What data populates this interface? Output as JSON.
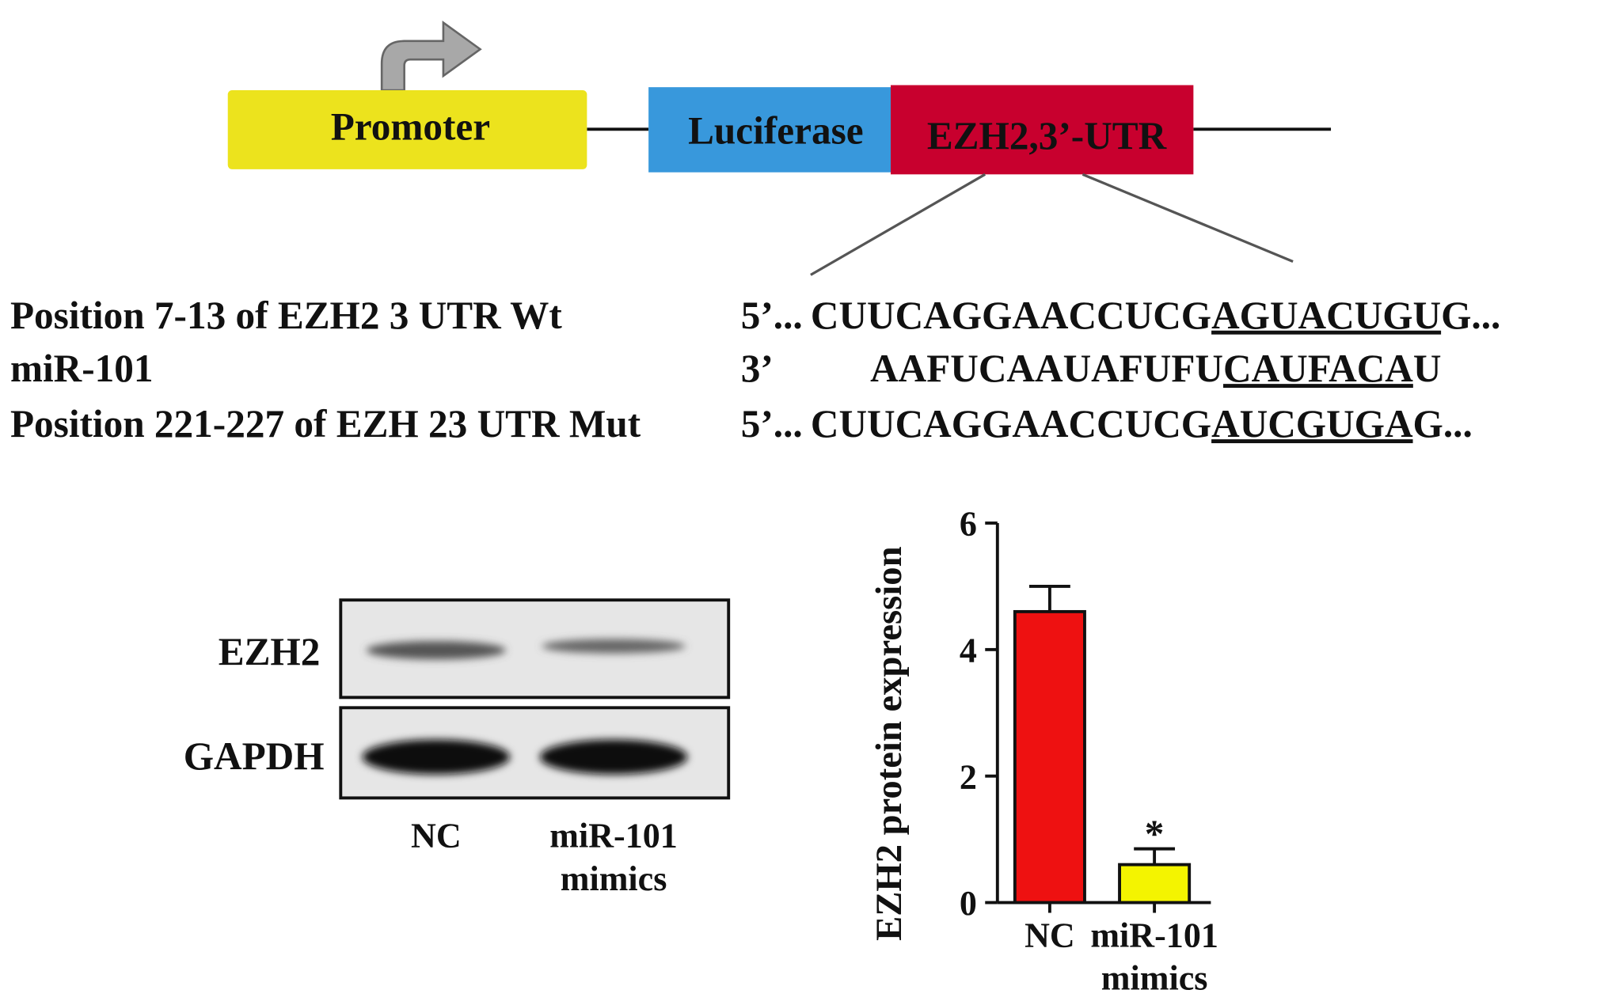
{
  "diagram": {
    "promoter": "Promoter",
    "luciferase": "Luciferase",
    "utr": "EZH2,3’-UTR"
  },
  "sequences": [
    {
      "label": "Position 7-13 of EZH2 3 UTR Wt",
      "end": "5’...",
      "before": "CUUCAGGAACCUCG",
      "site": "AGUACUGU",
      "after": "G..."
    },
    {
      "label": "miR-101",
      "end": "3’",
      "before": "AAFUCAAUAFUFU",
      "site": "CAUFACA",
      "after": "U"
    },
    {
      "label": "Position 221-227 of EZH 23 UTR Mut",
      "end": "5’...",
      "before": "CUUCAGGAACCUCG",
      "site": "AUCGUGA",
      "after": "G..."
    }
  ],
  "blot": {
    "rows": [
      "EZH2",
      "GAPDH"
    ],
    "lanes": [
      "NC",
      "miR-101 mimics"
    ]
  },
  "chart_data": {
    "type": "bar",
    "ylabel": "EZH2 protein expression",
    "categories": [
      "NC",
      "miR-101 mimics"
    ],
    "values": [
      4.6,
      0.6
    ],
    "errors": [
      0.4,
      0.25
    ],
    "colors": [
      "#ee1111",
      "#f4f400"
    ],
    "annotations": [
      null,
      "*"
    ],
    "ylim": [
      0,
      6
    ],
    "yticks": [
      0,
      2,
      4,
      6
    ]
  }
}
